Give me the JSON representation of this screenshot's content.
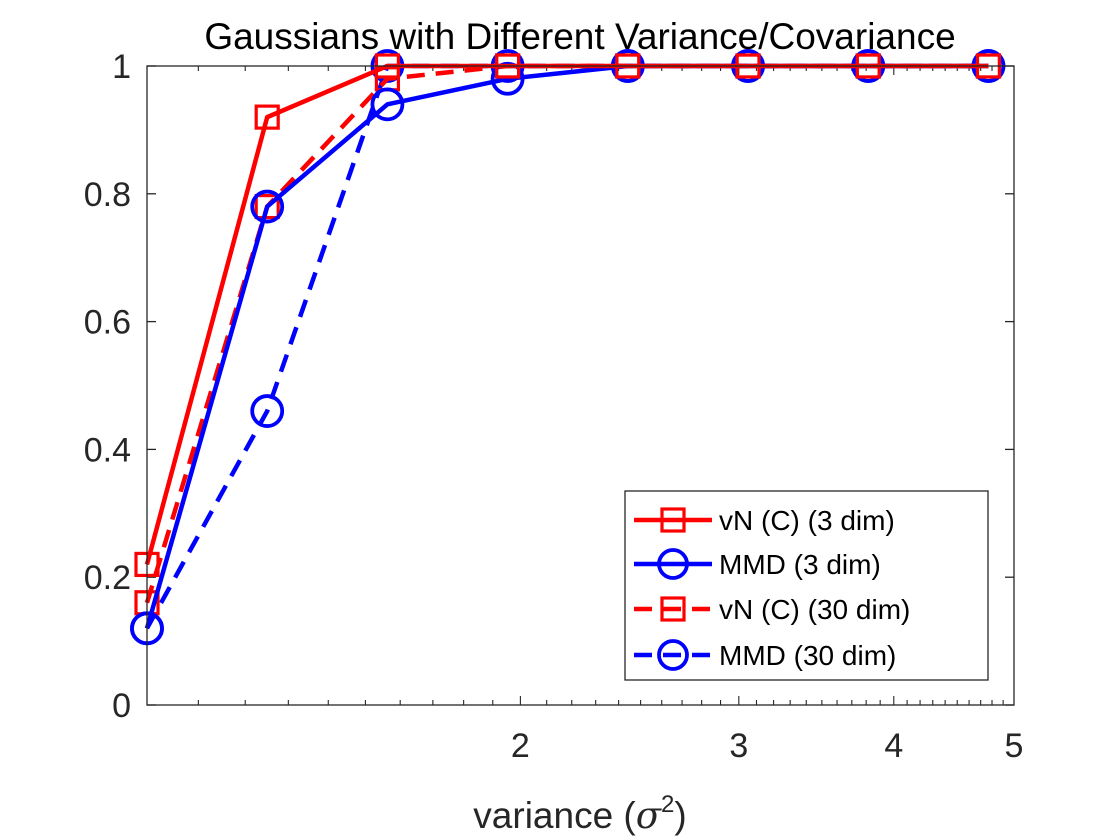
{
  "chart_data": {
    "type": "line",
    "title": "Gaussians with Different Variance/Covariance",
    "xlabel": {
      "prefix": "variance (",
      "symbol": "σ",
      "superscript": "2",
      "suffix": ")"
    },
    "ylabel": "",
    "xscale": "log",
    "xlim": [
      1.0,
      5.0
    ],
    "ylim": [
      0,
      1
    ],
    "x": [
      1.0,
      1.25,
      1.5625,
      1.953125,
      2.44140625,
      3.0517578125,
      3.814697265625,
      4.76837158203125
    ],
    "yticks": [
      {
        "value": 0,
        "label": "0"
      },
      {
        "value": 0.2,
        "label": "0.2"
      },
      {
        "value": 0.4,
        "label": "0.4"
      },
      {
        "value": 0.6,
        "label": "0.6"
      },
      {
        "value": 0.8,
        "label": "0.8"
      },
      {
        "value": 1,
        "label": "1"
      }
    ],
    "xticks": [
      {
        "value": 2,
        "label": "2"
      },
      {
        "value": 3,
        "label": "3"
      },
      {
        "value": 4,
        "label": "4"
      },
      {
        "value": 5,
        "label": "5"
      }
    ],
    "series": [
      {
        "name": "vN (C) (3 dim)",
        "color": "#ff0000",
        "dash": "solid",
        "marker": "square",
        "values": [
          0.22,
          0.92,
          1.0,
          1.0,
          1.0,
          1.0,
          1.0,
          1.0
        ]
      },
      {
        "name": "MMD (3 dim)",
        "color": "#0000ff",
        "dash": "solid",
        "marker": "circle",
        "values": [
          0.12,
          0.78,
          0.94,
          0.98,
          1.0,
          1.0,
          1.0,
          1.0
        ]
      },
      {
        "name": "vN (C) (30 dim)",
        "color": "#ff0000",
        "dash": "dashed",
        "marker": "square",
        "values": [
          0.16,
          0.78,
          0.98,
          1.0,
          1.0,
          1.0,
          1.0,
          1.0
        ]
      },
      {
        "name": "MMD (30 dim)",
        "color": "#0000ff",
        "dash": "dashed",
        "marker": "circle",
        "values": [
          0.12,
          0.46,
          1.0,
          1.0,
          1.0,
          1.0,
          1.0,
          1.0
        ]
      }
    ],
    "legend_position": "bottom-right",
    "grid": false
  }
}
